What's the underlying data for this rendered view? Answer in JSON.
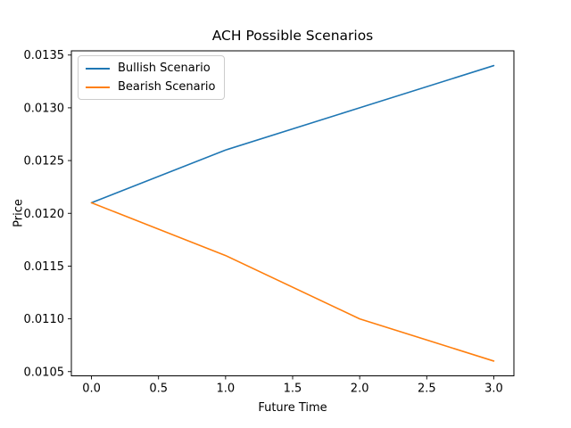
{
  "title": "ACH Possible Scenarios",
  "axes": {
    "xlabel": "Future Time",
    "ylabel": "Price"
  },
  "chart_data": {
    "type": "line",
    "title": "ACH Possible Scenarios",
    "xlabel": "Future Time",
    "ylabel": "Price",
    "x": [
      0.0,
      1.0,
      2.0,
      3.0
    ],
    "series": [
      {
        "name": "Bullish Scenario",
        "color": "#1f77b4",
        "values": [
          0.0121,
          0.0126,
          0.013,
          0.0134
        ]
      },
      {
        "name": "Bearish Scenario",
        "color": "#ff7f0e",
        "values": [
          0.0121,
          0.0116,
          0.011,
          0.0106
        ]
      }
    ],
    "xticks": {
      "values": [
        0.0,
        0.5,
        1.0,
        1.5,
        2.0,
        2.5,
        3.0
      ],
      "decimals": 1
    },
    "yticks": {
      "values": [
        0.0105,
        0.011,
        0.0115,
        0.012,
        0.0125,
        0.013,
        0.0135
      ],
      "decimals": 4
    },
    "xlim": [
      -0.15,
      3.15
    ],
    "ylim": [
      0.01046,
      0.01354
    ],
    "grid": false,
    "legend_position": "upper left",
    "line_width": 1.6,
    "axis_color": "#000000"
  }
}
